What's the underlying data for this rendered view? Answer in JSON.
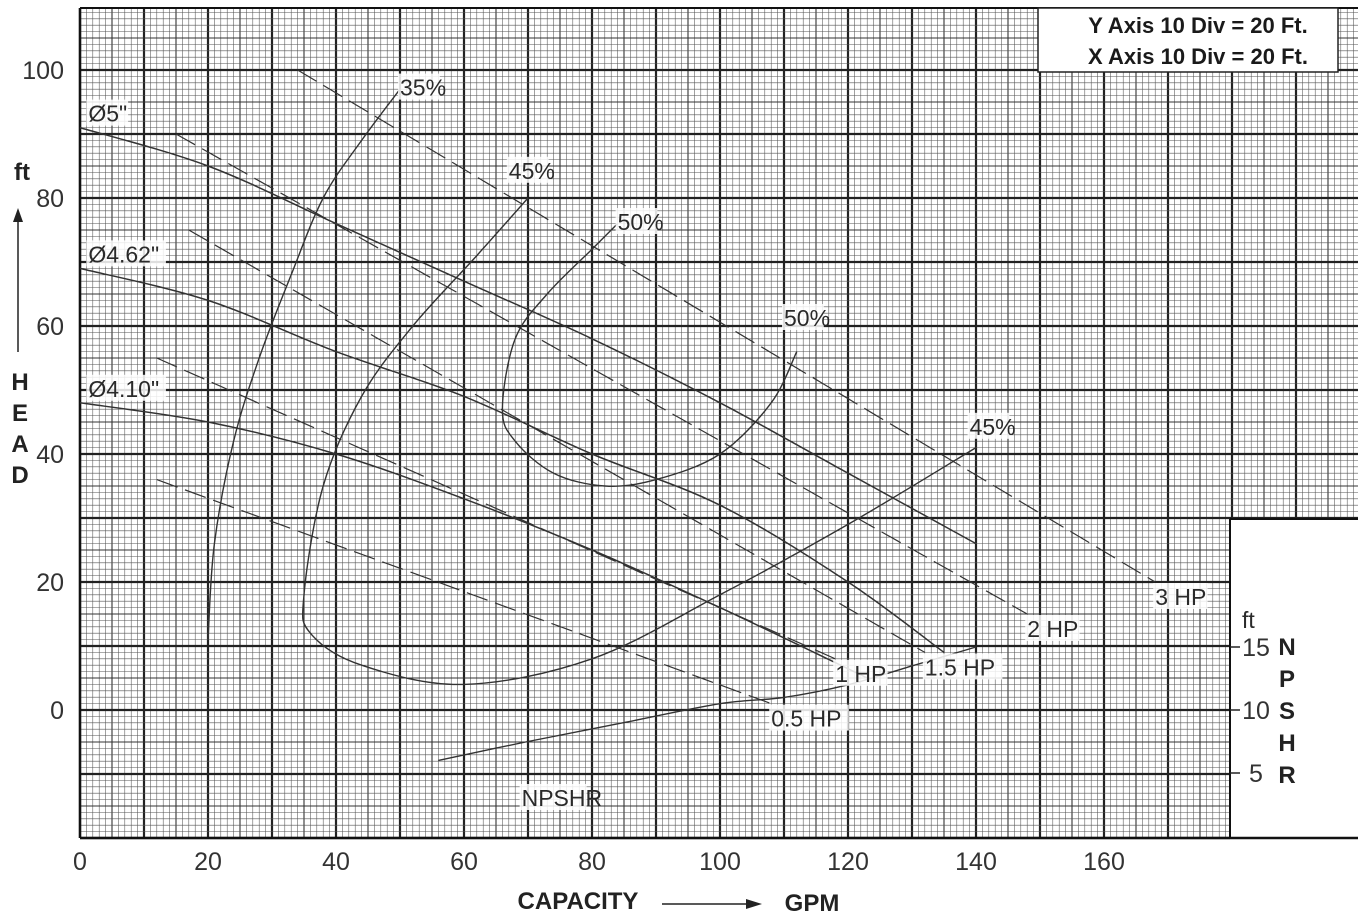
{
  "chart_data": {
    "type": "line",
    "title": "",
    "xlabel": "CAPACITY",
    "xunit": "GPM",
    "ylabel_letters": [
      "H",
      "E",
      "A",
      "D"
    ],
    "yunit": "ft",
    "xlim": [
      0,
      180
    ],
    "ylim": [
      -20,
      110
    ],
    "x_ticks": [
      0,
      20,
      40,
      60,
      80,
      100,
      120,
      140,
      160
    ],
    "x_tick_labels": [
      "0",
      "20",
      "40",
      "60",
      "80",
      "100",
      "120",
      "140",
      "160"
    ],
    "y_ticks": [
      0,
      20,
      40,
      60,
      80,
      100
    ],
    "y_tick_labels": [
      "0",
      "20",
      "40",
      "60",
      "80",
      "100"
    ],
    "grid": true,
    "legend_box": {
      "position": "top-right",
      "lines": [
        "Y Axis 10 Div = 20 Ft.",
        "X Axis 10 Div = 20 Ft."
      ]
    },
    "npshr_axis": {
      "unit": "ft",
      "ticks": [
        5,
        10,
        15
      ],
      "tick_labels": [
        "5",
        "10",
        "15"
      ],
      "letters": [
        "N",
        "P",
        "S",
        "H",
        "R"
      ]
    },
    "head_curves": [
      {
        "label": "Ø5\"",
        "x": [
          0,
          20,
          40,
          60,
          80,
          100,
          120,
          140
        ],
        "y": [
          91,
          85,
          76,
          67,
          58,
          48,
          37,
          26
        ]
      },
      {
        "label": "Ø4.62\"",
        "x": [
          0,
          20,
          40,
          60,
          80,
          100,
          120,
          135
        ],
        "y": [
          69,
          64,
          56,
          49,
          40,
          32,
          20,
          9
        ]
      },
      {
        "label": "Ø4.10\"",
        "x": [
          0,
          20,
          40,
          60,
          80,
          100,
          123
        ],
        "y": [
          48,
          45,
          40,
          33,
          25,
          16,
          5
        ]
      }
    ],
    "power_lines": [
      {
        "label": "3 HP",
        "x": [
          34,
          168
        ],
        "y": [
          100,
          20
        ]
      },
      {
        "label": "2 HP",
        "x": [
          15,
          148
        ],
        "y": [
          90,
          15
        ]
      },
      {
        "label": "1.5 HP",
        "x": [
          17,
          132
        ],
        "y": [
          75,
          9
        ]
      },
      {
        "label": "1 HP",
        "x": [
          12,
          118
        ],
        "y": [
          55,
          8
        ]
      },
      {
        "label": "0.5 HP",
        "x": [
          12,
          108
        ],
        "y": [
          36,
          1
        ]
      }
    ],
    "efficiency_curves": [
      {
        "label": "35%",
        "x": [
          20,
          21,
          24,
          28,
          33,
          38,
          44,
          50
        ],
        "y": [
          11,
          26,
          42,
          55,
          68,
          80,
          89,
          97
        ]
      },
      {
        "label": "45%",
        "x": [
          70,
          62,
          52,
          44,
          38,
          35,
          36,
          44,
          60,
          80,
          100,
          120,
          140
        ],
        "y": [
          80,
          71,
          60,
          49,
          35,
          18,
          12,
          7,
          4,
          8,
          18,
          29,
          41
        ]
      },
      {
        "label": "50%",
        "x": [
          84,
          80,
          73,
          68,
          66,
          68,
          74,
          82,
          90,
          100,
          108,
          112
        ],
        "y": [
          76,
          72,
          65,
          58,
          47,
          42,
          37,
          35,
          36,
          40,
          48,
          56
        ]
      }
    ],
    "efficiency_labels": [
      {
        "text": "35%",
        "x": 50,
        "y": 96
      },
      {
        "text": "45%",
        "x": 67,
        "y": 83
      },
      {
        "text": "50%",
        "x": 84,
        "y": 75
      },
      {
        "text": "50%",
        "x": 110,
        "y": 60
      },
      {
        "text": "45%",
        "x": 139,
        "y": 43
      }
    ],
    "npshr_curve": {
      "label": "NPSHR",
      "x": [
        56,
        70,
        85,
        100,
        110,
        120,
        130,
        140
      ],
      "y": [
        6,
        7.5,
        9,
        10.5,
        11,
        12,
        13.5,
        15
      ]
    },
    "npshr_label": "NPSHR"
  }
}
